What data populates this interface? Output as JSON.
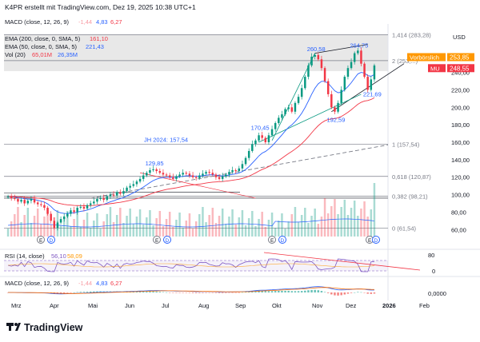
{
  "header": {
    "text": "K4PR erstellt mit TradingView.com, Dez 19, 2025 10:38 UTC+1"
  },
  "top_legend": {
    "name": "MACD (close, 12, 26, 9)",
    "v1": "-1,44",
    "v2": "4,83",
    "v3": "6,27"
  },
  "legend": [
    {
      "name": "EMA (200, close, 0, SMA, 5)",
      "value": "161,10",
      "color": "#f23645"
    },
    {
      "name": "EMA (50, close, 0, SMA, 5)",
      "value": "221,43",
      "color": "#2962ff"
    },
    {
      "name": "Vol (20)",
      "value": "65,01M",
      "value2": "26,35M",
      "color": "#f23645",
      "color2": "#2962ff"
    }
  ],
  "currency": "USD",
  "price_tags": [
    {
      "label": "Vorbörslich",
      "value": "253,85",
      "color": "#ff9800"
    },
    {
      "label": "MU",
      "value": "248,55",
      "color": "#f23645"
    }
  ],
  "rsi_legend": {
    "name": "RSI (14, close)",
    "v1": "56,10",
    "v2": "58,09"
  },
  "macd_legend": {
    "name": "MACD (close, 12, 26, 9)",
    "v1": "-1,44",
    "v2": "4,83",
    "v3": "6,27"
  },
  "logo_text": "TradingView",
  "colors": {
    "up": "#089981",
    "down": "#f23645",
    "ema50": "#2962ff",
    "ema200": "#f23645",
    "rsi": "#7e57c2",
    "fib": "#787b86"
  },
  "chart_data": {
    "type": "candlestick",
    "y_axis_ticks": [
      60,
      80,
      100,
      120,
      140,
      160,
      180,
      200,
      220,
      240
    ],
    "ylim": [
      52,
      290
    ],
    "x_axis_labels": [
      "Mrz",
      "Apr",
      "Mai",
      "Jun",
      "Jul",
      "Aug",
      "Sep",
      "Okt",
      "Nov",
      "Dez",
      "2026",
      "Feb"
    ],
    "close": [
      98,
      96,
      95,
      92,
      94,
      90,
      93,
      95,
      91,
      89,
      88,
      85,
      78,
      70,
      62,
      68,
      72,
      75,
      78,
      82,
      80,
      85,
      86,
      84,
      88,
      90,
      92,
      95,
      96,
      94,
      98,
      100,
      99,
      103,
      101,
      104,
      108,
      110,
      112,
      115,
      118,
      122,
      125,
      128,
      129,
      127,
      125,
      123,
      122,
      120,
      118,
      121,
      123,
      125,
      124,
      122,
      120,
      119,
      122,
      124,
      126,
      125,
      123,
      120,
      118,
      121,
      123,
      126,
      128,
      127,
      130,
      135,
      142,
      150,
      158,
      162,
      168,
      165,
      160,
      168,
      175,
      182,
      188,
      192,
      198,
      200,
      195,
      205,
      212,
      222,
      235,
      248,
      258,
      260,
      255,
      245,
      230,
      215,
      200,
      195,
      205,
      220,
      235,
      245,
      252,
      262,
      265,
      250,
      235,
      220,
      232,
      248
    ],
    "last_close": 248.55,
    "premarket": 253.85,
    "annotations": [
      {
        "text": "260,58",
        "x_index": 93,
        "value": 260.58
      },
      {
        "text": "264,75",
        "x_index": 106,
        "value": 264.75
      },
      {
        "text": "192,59",
        "x_index": 99,
        "value": 192.59
      },
      {
        "text": "221,69",
        "x_index": 110,
        "value": 221.69
      },
      {
        "text": "170,45",
        "x_index": 76,
        "value": 170.45
      },
      {
        "text": "129,85",
        "x_index": 44,
        "value": 129.85
      }
    ],
    "levels": [
      {
        "label": "1 (157,54)",
        "value": 157.54
      },
      {
        "label": "0,618 (120,87)",
        "value": 120.87
      },
      {
        "label": "0,382 (98,21)",
        "value": 98.21
      },
      {
        "label": "0 (61,54)",
        "value": 61.54
      },
      {
        "label": "1,414 (283,28)",
        "value": 283.28
      },
      {
        "label": "2 (253,...)",
        "value": 253.5
      }
    ],
    "jh_label": "JH 2024: 157,54",
    "rsi_ticks": [
      80,
      0
    ],
    "macd_ticks": [
      "0,0000"
    ]
  }
}
